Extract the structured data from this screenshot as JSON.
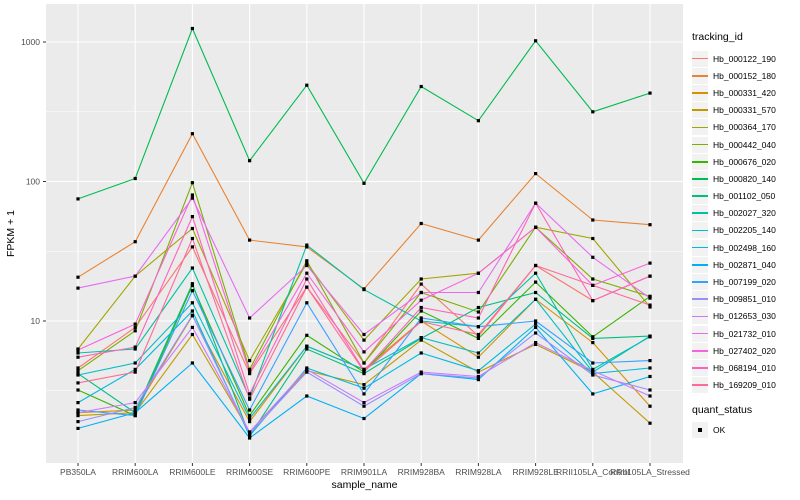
{
  "chart_data": {
    "type": "line",
    "title": "",
    "xlabel": "sample_name",
    "ylabel": "FPKM + 1",
    "y_scale": "log10",
    "y_ticks": [
      10,
      100,
      1000
    ],
    "y_minor_ticks": [
      3.162,
      31.62,
      316.2
    ],
    "ylim": [
      0.97,
      1700
    ],
    "grid": true,
    "legend_position": "right",
    "categories": [
      "PB350LA",
      "RRIM600LA",
      "RRIM600LE",
      "RRIM600SE",
      "RRIM600PE",
      "RRIM901LA",
      "RRIM928BA",
      "RRIM928LA",
      "RRIM928LE",
      "RRII105LA_Control",
      "RRII105LA_Stressed"
    ],
    "series": [
      {
        "name": "Hb_000122_190",
        "color": "#F8766D",
        "values": [
          4.6,
          9,
          34,
          4.2,
          17.5,
          5,
          18.4,
          7.8,
          25,
          14,
          21
        ]
      },
      {
        "name": "Hb_000152_180",
        "color": "#EA8331",
        "values": [
          20.6,
          37,
          220,
          38,
          34,
          17,
          50,
          38,
          114,
          53,
          49
        ]
      },
      {
        "name": "Hb_000331_420",
        "color": "#D89000",
        "values": [
          2.2,
          2.3,
          10.9,
          1.9,
          6.6,
          4.5,
          10,
          5.5,
          14.3,
          7,
          2.45
        ]
      },
      {
        "name": "Hb_000331_570",
        "color": "#C09B00",
        "values": [
          2.1,
          2.2,
          8,
          1.6,
          4.4,
          3.5,
          7.3,
          4.3,
          6.8,
          4.3,
          1.85
        ]
      },
      {
        "name": "Hb_000364_170",
        "color": "#A3A500",
        "values": [
          6.3,
          21,
          46,
          5.2,
          26,
          7.3,
          20,
          22,
          47,
          39,
          12.6
        ]
      },
      {
        "name": "Hb_000442_040",
        "color": "#7CAE00",
        "values": [
          4.4,
          8.5,
          98,
          4.5,
          27,
          5,
          16,
          11.6,
          47,
          20,
          15
        ]
      },
      {
        "name": "Hb_000676_020",
        "color": "#39B600",
        "values": [
          3.2,
          2.1,
          18,
          2.1,
          7.9,
          4.3,
          11.8,
          7.5,
          19,
          7.7,
          15
        ]
      },
      {
        "name": "Hb_000820_140",
        "color": "#00BB4E",
        "values": [
          75,
          105,
          1250,
          141,
          490,
          97,
          480,
          273,
          1020,
          316,
          430
        ]
      },
      {
        "name": "Hb_001102_050",
        "color": "#00BF7D",
        "values": [
          4.2,
          2.2,
          18.5,
          1.5,
          6.3,
          4.2,
          7.5,
          12.5,
          16,
          7.5,
          7.8
        ]
      },
      {
        "name": "Hb_002027_320",
        "color": "#00C1A3",
        "values": [
          5.9,
          6.3,
          24,
          2.8,
          35,
          16.8,
          10,
          9.1,
          22,
          4.5,
          7.7
        ]
      },
      {
        "name": "Hb_002205_140",
        "color": "#00BFC4",
        "values": [
          4.1,
          5,
          13.5,
          2,
          6.6,
          4.5,
          7.6,
          5.9,
          14.3,
          4.3,
          7.8
        ]
      },
      {
        "name": "Hb_002498_160",
        "color": "#00BAE0",
        "values": [
          2.6,
          4.5,
          11.8,
          1.5,
          4.6,
          3.3,
          5.9,
          4.4,
          9.5,
          4.2,
          4.6
        ]
      },
      {
        "name": "Hb_002871_040",
        "color": "#00B0F6",
        "values": [
          1.7,
          2.2,
          5,
          1.45,
          2.9,
          2,
          4.2,
          3.8,
          9,
          3,
          4
        ]
      },
      {
        "name": "Hb_007199_020",
        "color": "#35A2FF",
        "values": [
          2.3,
          2.1,
          16.5,
          2.3,
          13.5,
          3,
          10.5,
          9.1,
          10,
          5,
          5.2
        ]
      },
      {
        "name": "Hb_009851_010",
        "color": "#9590FF",
        "values": [
          1.9,
          2.4,
          11,
          1.55,
          4.3,
          2.45,
          4.2,
          3.9,
          8.2,
          4.1,
          3.2
        ]
      },
      {
        "name": "Hb_012653_030",
        "color": "#C77CFF",
        "values": [
          2.2,
          2.6,
          9,
          1.6,
          4.5,
          2.6,
          4.3,
          4,
          7,
          4.4,
          2.9
        ]
      },
      {
        "name": "Hb_021732_010",
        "color": "#E76BF3",
        "values": [
          17.2,
          21,
          76,
          10.5,
          25,
          8,
          16,
          16,
          70,
          28.6,
          14.6
        ]
      },
      {
        "name": "Hb_027402_020",
        "color": "#FA62DB",
        "values": [
          6.2,
          9.5,
          80,
          4.3,
          22,
          6,
          14.1,
          22,
          47,
          18,
          26
        ]
      },
      {
        "name": "Hb_068194_010",
        "color": "#FF62BC",
        "values": [
          5.5,
          6.5,
          56,
          3,
          20,
          4.4,
          12.5,
          10.5,
          70,
          14,
          21
        ]
      },
      {
        "name": "Hb_169209_010",
        "color": "#FF6A98",
        "values": [
          3.6,
          4.3,
          39,
          2.75,
          17.5,
          4.35,
          9.9,
          8,
          25,
          18,
          13
        ]
      }
    ],
    "legend": {
      "color_title": "tracking_id",
      "shape_title": "quant_status",
      "shape_items": [
        {
          "label": "OK",
          "marker": "square",
          "color": "#000000"
        }
      ]
    },
    "style": {
      "panel_bg": "#EBEBEB",
      "grid_color": "#FFFFFF",
      "key_bg": "#F2F2F2",
      "tick_label_color": "#4D4D4D",
      "axis_title_color": "#000000",
      "tick_mark_color": "#333333",
      "point_color": "#000000"
    }
  }
}
